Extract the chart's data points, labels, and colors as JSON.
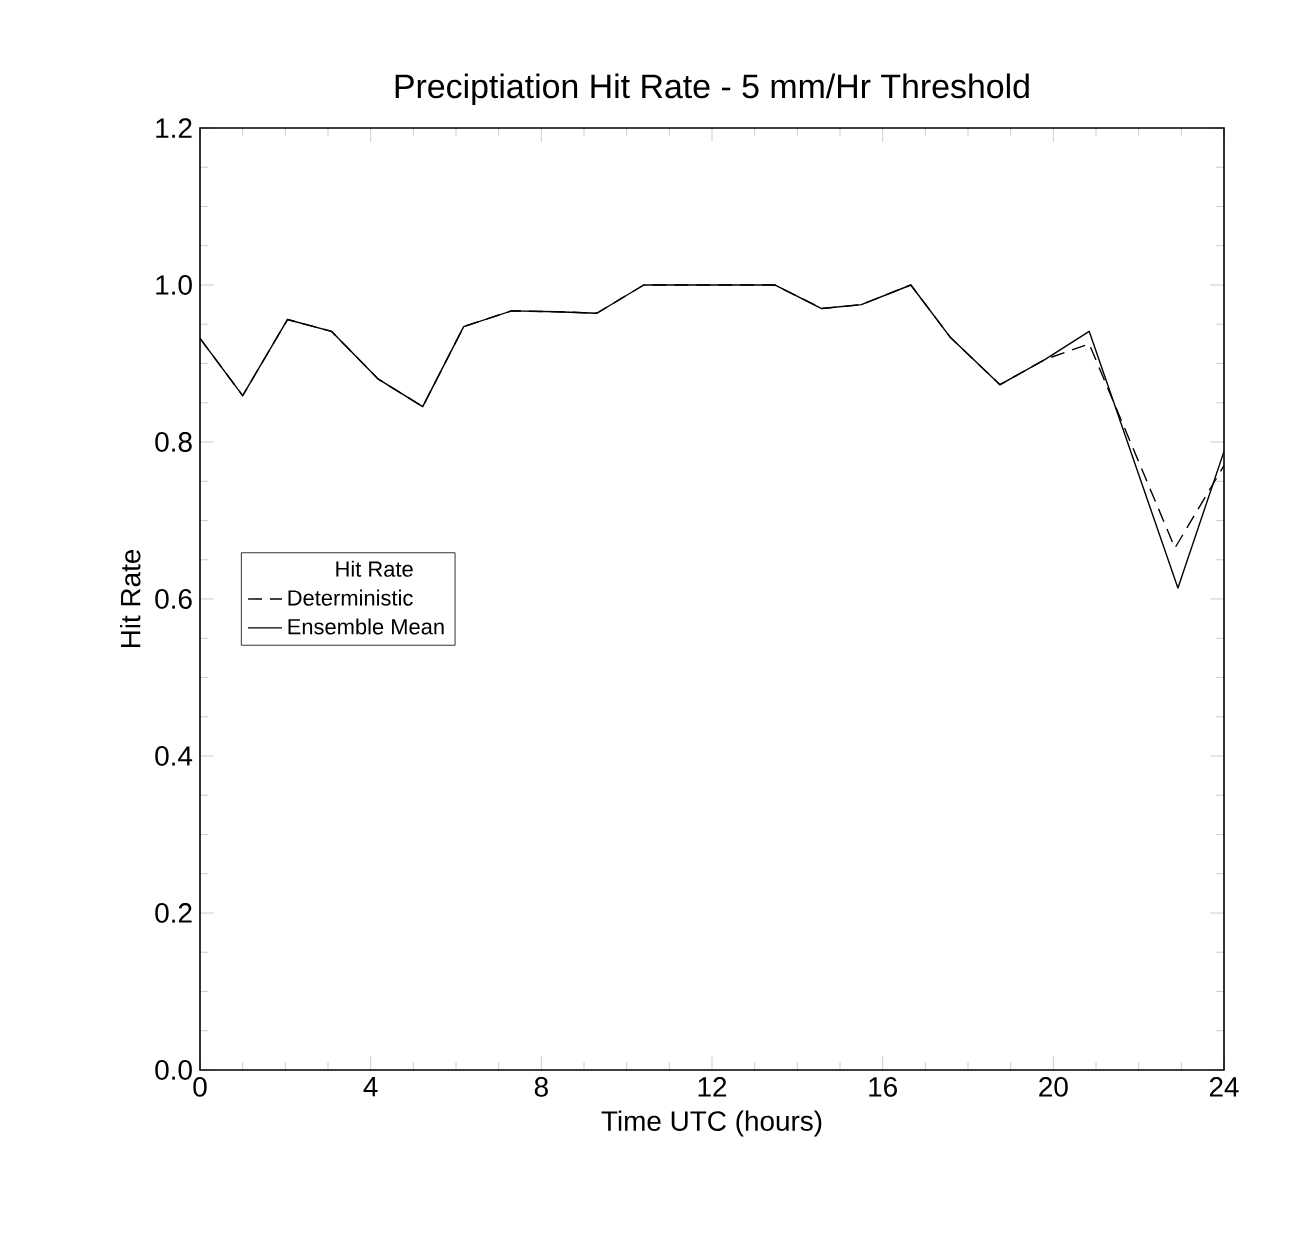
{
  "chart_data": {
    "type": "line",
    "title": "Preciptiation Hit Rate - 5 mm/Hr Threshold",
    "xlabel": "Time UTC (hours)",
    "ylabel": "Hit Rate",
    "legend_title": "Hit Rate",
    "legend": "left",
    "grid": false,
    "marker": "none",
    "xlim": [
      0,
      24
    ],
    "xticks": [
      0,
      4,
      8,
      12,
      16,
      20,
      24
    ],
    "ylim": [
      0,
      1.2
    ],
    "yticks": [
      {
        "value": 0,
        "label": "0.0"
      },
      {
        "value": 0.2,
        "label": "0.2"
      },
      {
        "value": 0.4,
        "label": "0.4"
      },
      {
        "value": 0.6,
        "label": "0.6"
      },
      {
        "value": 0.8,
        "label": "0.8"
      },
      {
        "value": 1.0,
        "label": "1.0"
      },
      {
        "value": 1.2,
        "label": "1.2"
      }
    ],
    "series": [
      {
        "name": "Deterministic",
        "color": "#000000",
        "line_style": "dashed",
        "x": [
          0,
          1,
          2.05,
          3.08,
          4.18,
          5.22,
          6.18,
          7.3,
          8.35,
          9.3,
          10.4,
          13.47,
          14.57,
          15.5,
          16.66,
          17.59,
          18.75,
          19.8,
          20.84,
          22.85,
          24
        ],
        "values": [
          0.932,
          0.859,
          0.956,
          0.941,
          0.88,
          0.845,
          0.947,
          0.967,
          0.966,
          0.964,
          1.0,
          1.0,
          0.97,
          0.975,
          1.0,
          0.933,
          0.873,
          0.905,
          0.925,
          0.665,
          0.77
        ]
      },
      {
        "name": "Ensemble Mean",
        "color": "#000000",
        "line_style": "solid",
        "x": [
          0,
          1,
          2.05,
          3.08,
          4.18,
          5.22,
          6.18,
          7.3,
          8.35,
          9.3,
          10.4,
          13.47,
          14.57,
          15.5,
          16.66,
          17.59,
          18.75,
          19.8,
          20.84,
          22.92,
          24
        ],
        "values": [
          0.932,
          0.859,
          0.956,
          0.941,
          0.88,
          0.845,
          0.947,
          0.967,
          0.966,
          0.964,
          1.0,
          1.0,
          0.97,
          0.975,
          1.0,
          0.933,
          0.873,
          0.905,
          0.941,
          0.614,
          0.788
        ]
      }
    ]
  }
}
